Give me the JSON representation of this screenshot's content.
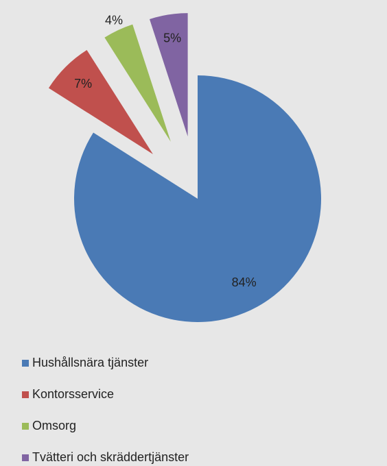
{
  "chart_data": {
    "type": "pie",
    "categories": [
      "Hushållsnära tjänster",
      "Kontorsservice",
      "Omsorg",
      "Tvätteri och skräddertjänster"
    ],
    "values": [
      84,
      7,
      4,
      5
    ],
    "value_labels": [
      "84%",
      "7%",
      "4%",
      "5%"
    ],
    "colors": [
      "#4a7ab5",
      "#c0504d",
      "#9bbb59",
      "#8064a2"
    ],
    "legend": "bottom"
  }
}
